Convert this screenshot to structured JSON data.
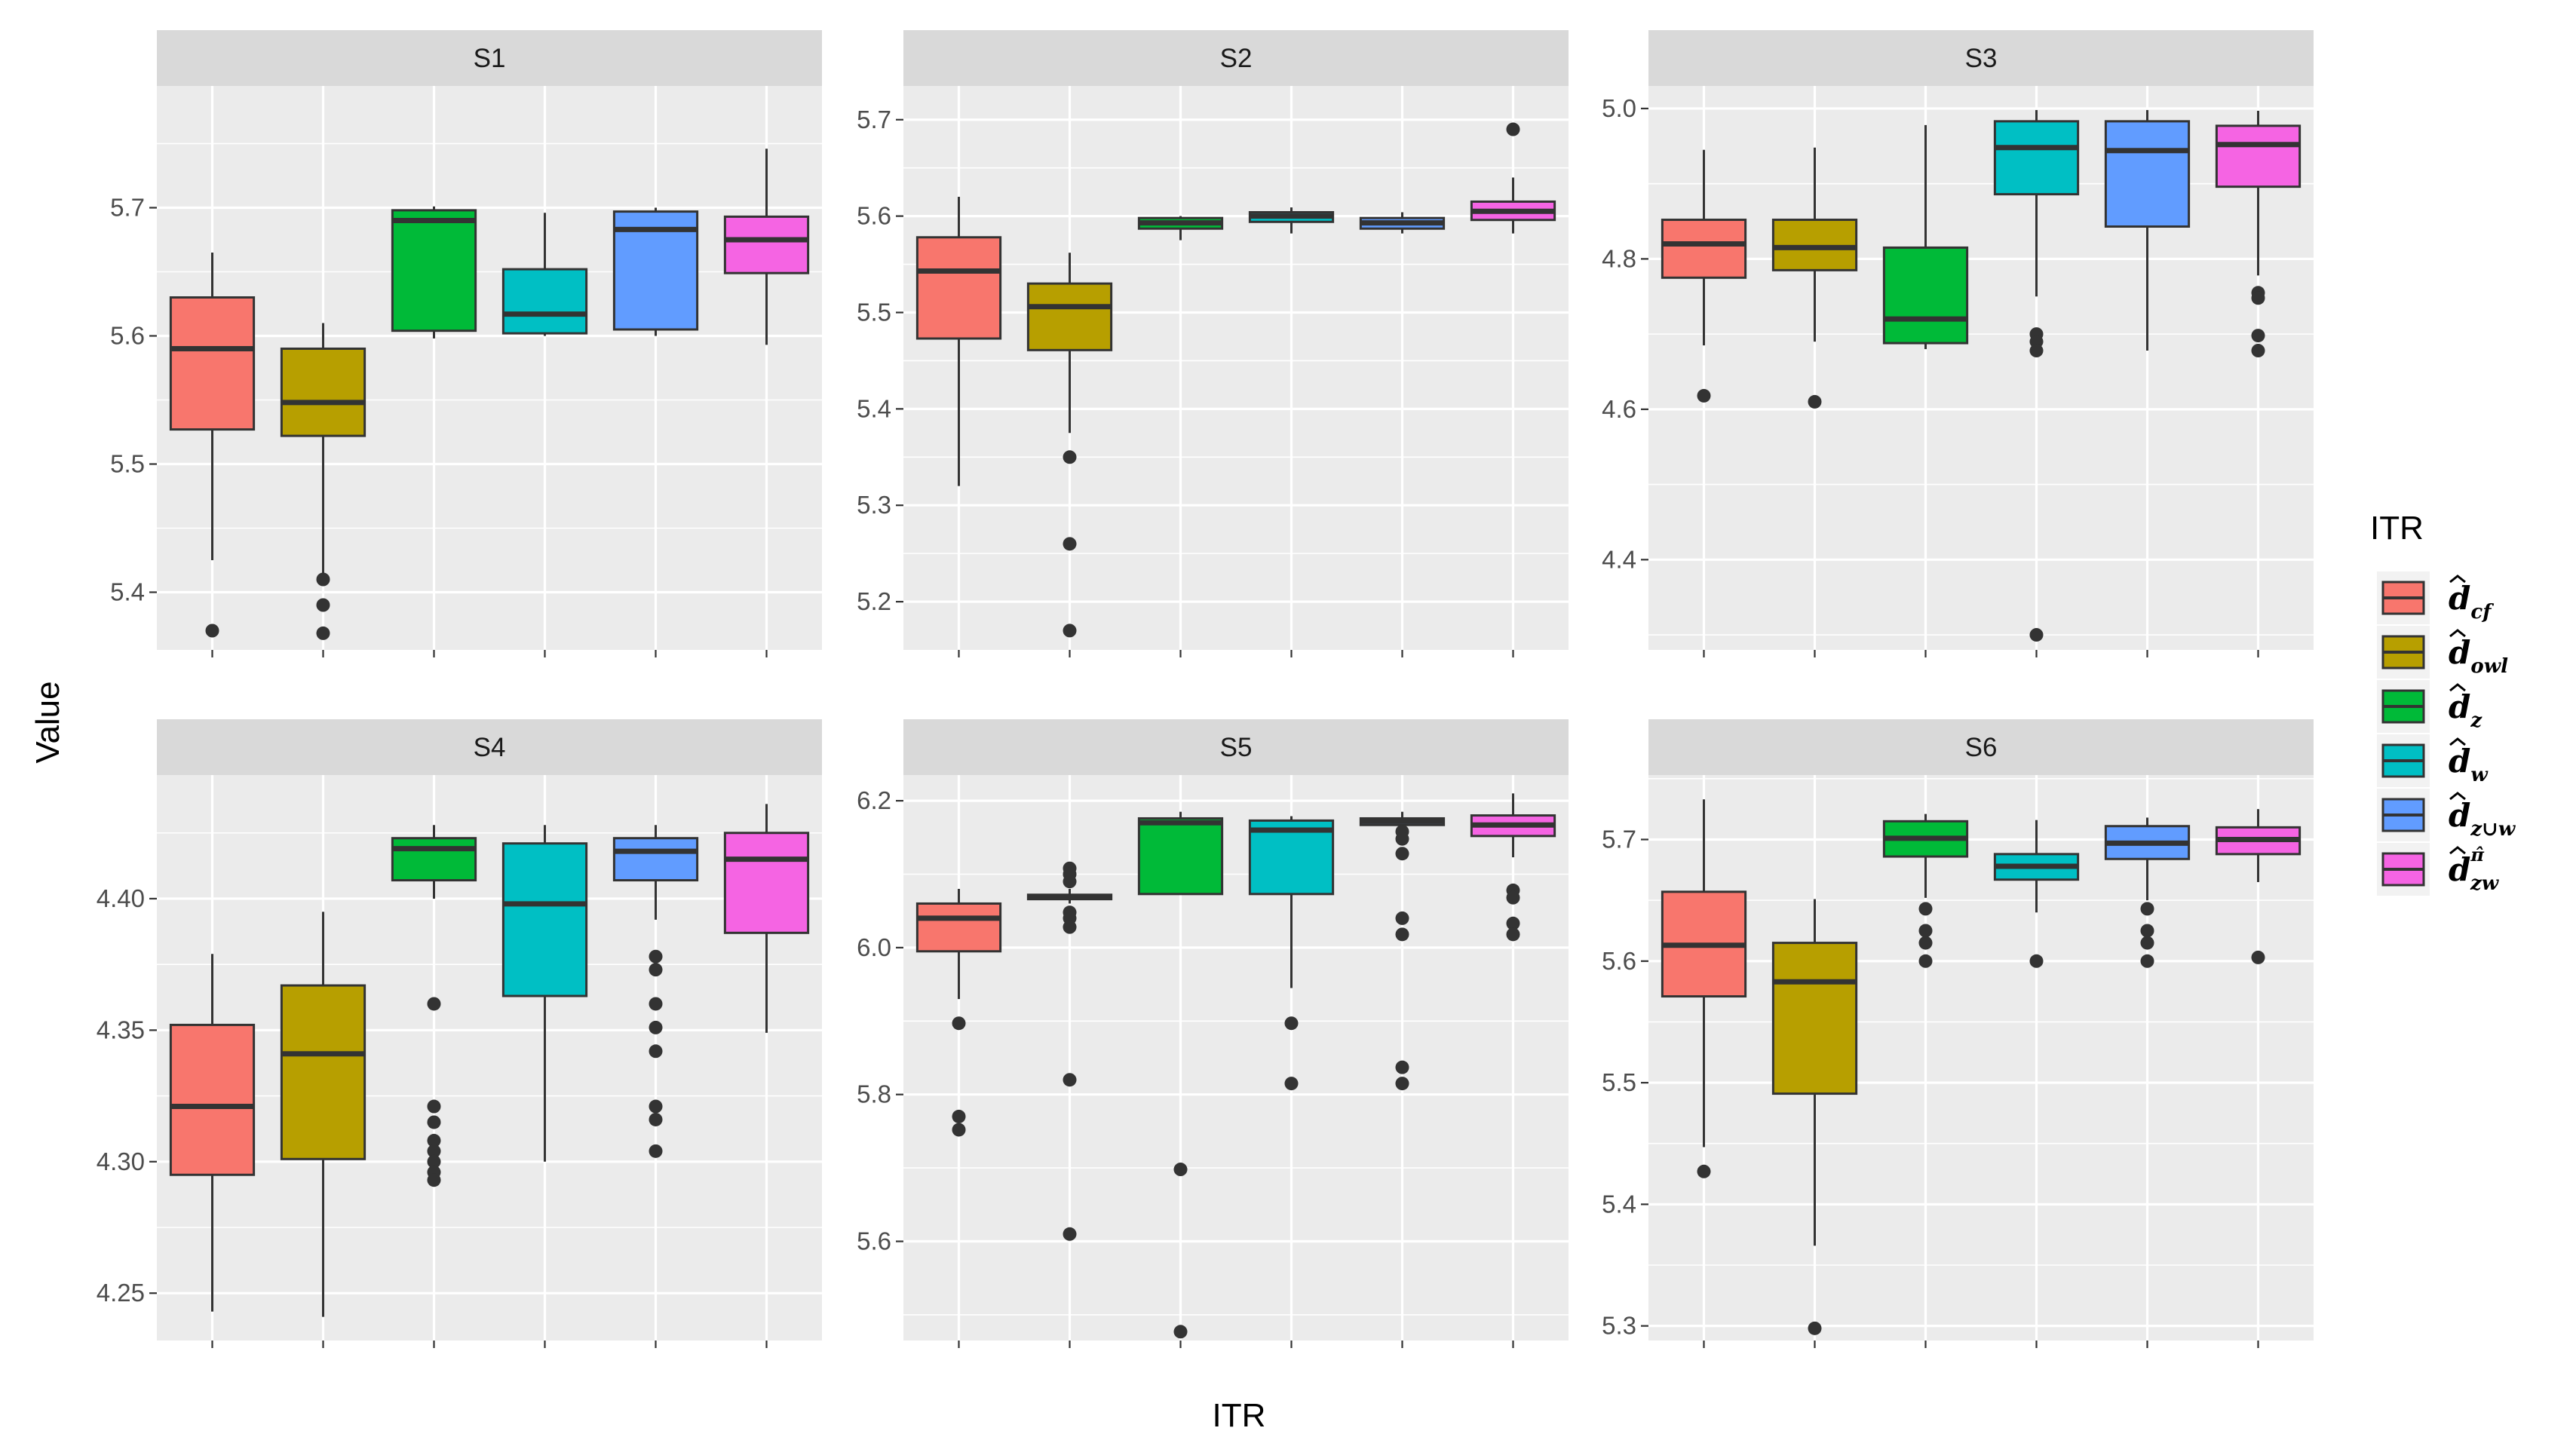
{
  "chart_data": {
    "type": "boxplot",
    "xlabel": "ITR",
    "ylabel": "Value",
    "legend": {
      "title": "ITR",
      "position": "right",
      "entries": [
        {
          "key": "cf",
          "color": "#F8766D",
          "base": "d",
          "sub": "cf",
          "sup": ""
        },
        {
          "key": "owl",
          "color": "#B79F00",
          "base": "d",
          "sub": "owl",
          "sup": ""
        },
        {
          "key": "z",
          "color": "#00BA38",
          "base": "d",
          "sub": "z",
          "sup": ""
        },
        {
          "key": "w",
          "color": "#00BFC4",
          "base": "d",
          "sub": "w",
          "sup": ""
        },
        {
          "key": "zuw",
          "color": "#619CFF",
          "base": "d",
          "sub": "z∪w",
          "sup": ""
        },
        {
          "key": "zw_pi",
          "color": "#F564E3",
          "base": "d",
          "sub": "zw",
          "sup": "π̂"
        }
      ]
    },
    "panels": [
      {
        "title": "S1",
        "ylim": [
          5.355,
          5.795
        ],
        "yticks": [
          5.4,
          5.5,
          5.6,
          5.7
        ],
        "ytick_labels": [
          "5.4",
          "5.5",
          "5.6",
          "5.7"
        ],
        "boxes": [
          {
            "itr": "cf",
            "lower": 5.425,
            "q1": 5.527,
            "median": 5.59,
            "q3": 5.63,
            "upper": 5.665,
            "outliers": [
              5.37
            ]
          },
          {
            "itr": "owl",
            "lower": 5.415,
            "q1": 5.522,
            "median": 5.548,
            "q3": 5.59,
            "upper": 5.61,
            "outliers": [
              5.41,
              5.39,
              5.368
            ]
          },
          {
            "itr": "z",
            "lower": 5.598,
            "q1": 5.604,
            "median": 5.69,
            "q3": 5.698,
            "upper": 5.701,
            "outliers": []
          },
          {
            "itr": "w",
            "lower": 5.6,
            "q1": 5.602,
            "median": 5.617,
            "q3": 5.652,
            "upper": 5.696,
            "outliers": []
          },
          {
            "itr": "zuw",
            "lower": 5.6,
            "q1": 5.605,
            "median": 5.683,
            "q3": 5.697,
            "upper": 5.7,
            "outliers": []
          },
          {
            "itr": "zw_pi",
            "lower": 5.593,
            "q1": 5.649,
            "median": 5.675,
            "q3": 5.693,
            "upper": 5.746,
            "outliers": []
          }
        ]
      },
      {
        "title": "S2",
        "ylim": [
          5.15,
          5.735
        ],
        "yticks": [
          5.2,
          5.3,
          5.4,
          5.5,
          5.6,
          5.7
        ],
        "ytick_labels": [
          "5.2",
          "5.3",
          "5.4",
          "5.5",
          "5.6",
          "5.7"
        ],
        "boxes": [
          {
            "itr": "cf",
            "lower": 5.32,
            "q1": 5.473,
            "median": 5.543,
            "q3": 5.578,
            "upper": 5.62,
            "outliers": []
          },
          {
            "itr": "owl",
            "lower": 5.375,
            "q1": 5.461,
            "median": 5.506,
            "q3": 5.53,
            "upper": 5.562,
            "outliers": [
              5.35,
              5.26,
              5.17
            ]
          },
          {
            "itr": "z",
            "lower": 5.575,
            "q1": 5.587,
            "median": 5.593,
            "q3": 5.598,
            "upper": 5.6,
            "outliers": []
          },
          {
            "itr": "w",
            "lower": 5.582,
            "q1": 5.594,
            "median": 5.6,
            "q3": 5.604,
            "upper": 5.609,
            "outliers": []
          },
          {
            "itr": "zuw",
            "lower": 5.582,
            "q1": 5.587,
            "median": 5.593,
            "q3": 5.598,
            "upper": 5.604,
            "outliers": []
          },
          {
            "itr": "zw_pi",
            "lower": 5.582,
            "q1": 5.596,
            "median": 5.605,
            "q3": 5.615,
            "upper": 5.64,
            "outliers": [
              5.69
            ]
          }
        ]
      },
      {
        "title": "S3",
        "ylim": [
          4.28,
          5.03
        ],
        "yticks": [
          4.4,
          4.6,
          4.8,
          5.0
        ],
        "ytick_labels": [
          "4.4",
          "4.6",
          "4.8",
          "5.0"
        ],
        "boxes": [
          {
            "itr": "cf",
            "lower": 4.685,
            "q1": 4.775,
            "median": 4.82,
            "q3": 4.852,
            "upper": 4.945,
            "outliers": [
              4.618
            ]
          },
          {
            "itr": "owl",
            "lower": 4.69,
            "q1": 4.785,
            "median": 4.815,
            "q3": 4.852,
            "upper": 4.948,
            "outliers": [
              4.61
            ]
          },
          {
            "itr": "z",
            "lower": 4.68,
            "q1": 4.688,
            "median": 4.72,
            "q3": 4.815,
            "upper": 4.978,
            "outliers": []
          },
          {
            "itr": "w",
            "lower": 4.75,
            "q1": 4.886,
            "median": 4.948,
            "q3": 4.983,
            "upper": 4.998,
            "outliers": [
              4.7,
              4.69,
              4.678,
              4.3
            ]
          },
          {
            "itr": "zuw",
            "lower": 4.678,
            "q1": 4.843,
            "median": 4.944,
            "q3": 4.983,
            "upper": 4.998,
            "outliers": []
          },
          {
            "itr": "zw_pi",
            "lower": 4.778,
            "q1": 4.896,
            "median": 4.952,
            "q3": 4.977,
            "upper": 4.997,
            "outliers": [
              4.755,
              4.748,
              4.698,
              4.678
            ]
          }
        ]
      },
      {
        "title": "S4",
        "ylim": [
          4.232,
          4.447
        ],
        "yticks": [
          4.25,
          4.3,
          4.35,
          4.4
        ],
        "ytick_labels": [
          "4.25",
          "4.30",
          "4.35",
          "4.40"
        ],
        "boxes": [
          {
            "itr": "cf",
            "lower": 4.243,
            "q1": 4.295,
            "median": 4.321,
            "q3": 4.352,
            "upper": 4.379,
            "outliers": []
          },
          {
            "itr": "owl",
            "lower": 4.241,
            "q1": 4.301,
            "median": 4.341,
            "q3": 4.367,
            "upper": 4.395,
            "outliers": []
          },
          {
            "itr": "z",
            "lower": 4.4,
            "q1": 4.407,
            "median": 4.419,
            "q3": 4.423,
            "upper": 4.428,
            "outliers": [
              4.36,
              4.321,
              4.315,
              4.308,
              4.304,
              4.3,
              4.296,
              4.293
            ]
          },
          {
            "itr": "w",
            "lower": 4.3,
            "q1": 4.363,
            "median": 4.398,
            "q3": 4.421,
            "upper": 4.428,
            "outliers": []
          },
          {
            "itr": "zuw",
            "lower": 4.392,
            "q1": 4.407,
            "median": 4.418,
            "q3": 4.423,
            "upper": 4.428,
            "outliers": [
              4.378,
              4.373,
              4.36,
              4.351,
              4.342,
              4.321,
              4.316,
              4.304
            ]
          },
          {
            "itr": "zw_pi",
            "lower": 4.349,
            "q1": 4.387,
            "median": 4.415,
            "q3": 4.425,
            "upper": 4.436,
            "outliers": []
          }
        ]
      },
      {
        "title": "S5",
        "ylim": [
          5.465,
          6.235
        ],
        "yticks": [
          5.6,
          5.8,
          6.0,
          6.2
        ],
        "ytick_labels": [
          "5.6",
          "5.8",
          "6.0",
          "6.2"
        ],
        "boxes": [
          {
            "itr": "cf",
            "lower": 5.93,
            "q1": 5.995,
            "median": 6.04,
            "q3": 6.06,
            "upper": 6.08,
            "outliers": [
              5.897,
              5.77,
              5.752
            ]
          },
          {
            "itr": "owl",
            "lower": 6.06,
            "q1": 6.066,
            "median": 6.069,
            "q3": 6.072,
            "upper": 6.08,
            "outliers": [
              6.108,
              6.1,
              6.09,
              6.048,
              6.04,
              6.028,
              5.82,
              5.61
            ]
          },
          {
            "itr": "z",
            "lower": 6.073,
            "q1": 6.073,
            "median": 6.17,
            "q3": 6.176,
            "upper": 6.185,
            "outliers": [
              5.698,
              5.477
            ]
          },
          {
            "itr": "w",
            "lower": 5.945,
            "q1": 6.073,
            "median": 6.16,
            "q3": 6.173,
            "upper": 6.179,
            "outliers": [
              5.897,
              5.815
            ]
          },
          {
            "itr": "zuw",
            "lower": 6.14,
            "q1": 6.167,
            "median": 6.172,
            "q3": 6.176,
            "upper": 6.185,
            "outliers": [
              6.158,
              6.148,
              6.128,
              6.04,
              6.018,
              5.837,
              5.815
            ]
          },
          {
            "itr": "zw_pi",
            "lower": 6.123,
            "q1": 6.152,
            "median": 6.167,
            "q3": 6.18,
            "upper": 6.21,
            "outliers": [
              6.078,
              6.068,
              6.033,
              6.018
            ]
          }
        ]
      },
      {
        "title": "S6",
        "ylim": [
          5.288,
          5.753
        ],
        "yticks": [
          5.3,
          5.4,
          5.5,
          5.6,
          5.7
        ],
        "ytick_labels": [
          "5.3",
          "5.4",
          "5.5",
          "5.6",
          "5.7"
        ],
        "boxes": [
          {
            "itr": "cf",
            "lower": 5.447,
            "q1": 5.571,
            "median": 5.613,
            "q3": 5.657,
            "upper": 5.733,
            "outliers": [
              5.427
            ]
          },
          {
            "itr": "owl",
            "lower": 5.366,
            "q1": 5.491,
            "median": 5.583,
            "q3": 5.615,
            "upper": 5.651,
            "outliers": [
              5.298
            ]
          },
          {
            "itr": "z",
            "lower": 5.652,
            "q1": 5.686,
            "median": 5.701,
            "q3": 5.715,
            "upper": 5.721,
            "outliers": [
              5.643,
              5.625,
              5.615,
              5.6
            ]
          },
          {
            "itr": "w",
            "lower": 5.64,
            "q1": 5.667,
            "median": 5.678,
            "q3": 5.688,
            "upper": 5.716,
            "outliers": [
              5.6
            ]
          },
          {
            "itr": "zuw",
            "lower": 5.65,
            "q1": 5.684,
            "median": 5.697,
            "q3": 5.711,
            "upper": 5.718,
            "outliers": [
              5.643,
              5.625,
              5.615,
              5.6
            ]
          },
          {
            "itr": "zw_pi",
            "lower": 5.665,
            "q1": 5.688,
            "median": 5.7,
            "q3": 5.71,
            "upper": 5.725,
            "outliers": [
              5.603
            ]
          }
        ]
      }
    ]
  }
}
